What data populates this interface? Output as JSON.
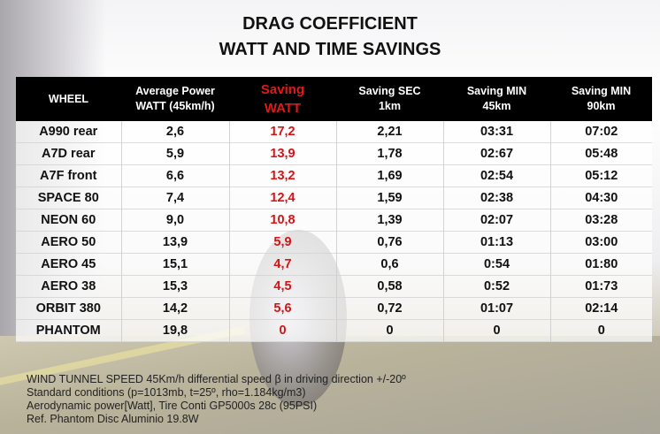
{
  "title_line1": "DRAG COEFFICIENT",
  "title_line2": "WATT AND TIME SAVINGS",
  "colors": {
    "accent_red": "#d41315",
    "header_bg": "#000000"
  },
  "chart_data": {
    "type": "table",
    "title": "DRAG COEFFICIENT WATT AND TIME SAVINGS",
    "headers": [
      {
        "line1": "WHEEL",
        "line2": ""
      },
      {
        "line1": "Average Power",
        "line2": "WATT (45km/h)"
      },
      {
        "line1": "Saving",
        "line2": "WATT"
      },
      {
        "line1": "Saving SEC",
        "line2": "1km"
      },
      {
        "line1": "Saving MIN",
        "line2": "45km"
      },
      {
        "line1": "Saving MIN",
        "line2": "90km"
      }
    ],
    "rows": [
      [
        "A990 rear",
        "2,6",
        "17,2",
        "2,21",
        "03:31",
        "07:02"
      ],
      [
        "A7D rear",
        "5,9",
        "13,9",
        "1,78",
        "02:67",
        "05:48"
      ],
      [
        "A7F front",
        "6,6",
        "13,2",
        "1,69",
        "02:54",
        "05:12"
      ],
      [
        "SPACE 80",
        "7,4",
        "12,4",
        "1,59",
        "02:38",
        "04:30"
      ],
      [
        "NEON 60",
        "9,0",
        "10,8",
        "1,39",
        "02:07",
        "03:28"
      ],
      [
        "AERO 50",
        "13,9",
        "5,9",
        "0,76",
        "01:13",
        "03:00"
      ],
      [
        "AERO 45",
        "15,1",
        "4,7",
        "0,6",
        "0:54",
        "01:80"
      ],
      [
        "AERO 38",
        "15,3",
        "4,5",
        "0,58",
        "0:52",
        "01:73"
      ],
      [
        "ORBIT 380",
        "14,2",
        "5,6",
        "0,72",
        "01:07",
        "02:14"
      ],
      [
        "PHANTOM",
        "19,8",
        "0",
        "0",
        "0",
        "0"
      ]
    ]
  },
  "notes": [
    "WIND TUNNEL SPEED 45Km/h differential speed β in driving direction +/-20º",
    "Standard conditions (p=1013mb, t=25º, rho=1.184kg/m3)",
    "Aerodynamic power[Watt], Tire Conti GP5000s 28c (95PSI)",
    "Ref. Phantom Disc Aluminio 19.8W"
  ]
}
